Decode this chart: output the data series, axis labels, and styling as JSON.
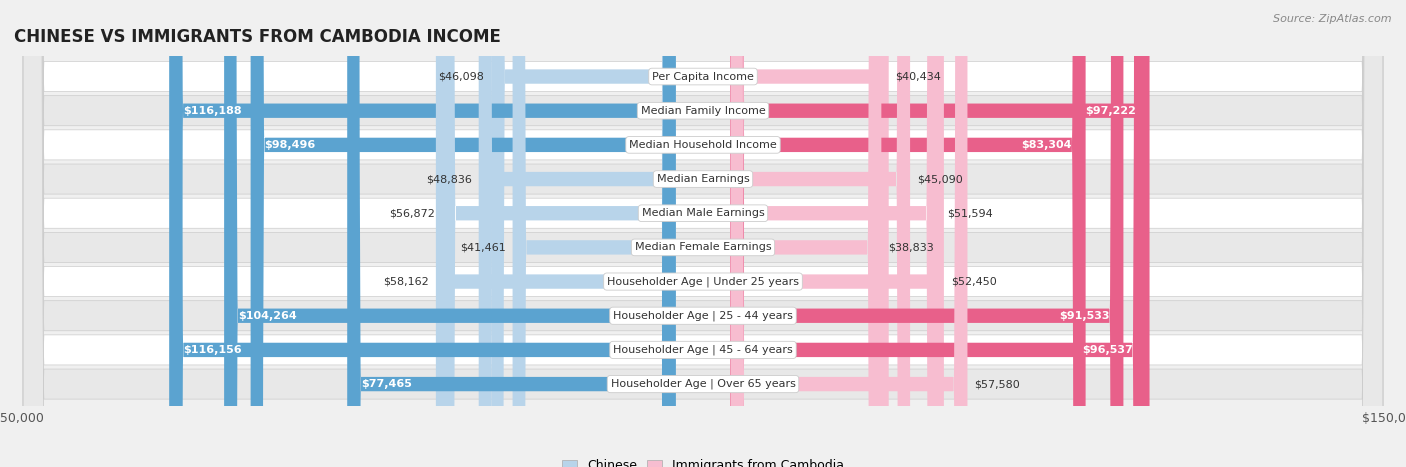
{
  "title": "CHINESE VS IMMIGRANTS FROM CAMBODIA INCOME",
  "source": "Source: ZipAtlas.com",
  "categories": [
    "Per Capita Income",
    "Median Family Income",
    "Median Household Income",
    "Median Earnings",
    "Median Male Earnings",
    "Median Female Earnings",
    "Householder Age | Under 25 years",
    "Householder Age | 25 - 44 years",
    "Householder Age | 45 - 64 years",
    "Householder Age | Over 65 years"
  ],
  "chinese_values": [
    46098,
    116188,
    98496,
    48836,
    56872,
    41461,
    58162,
    104264,
    116156,
    77465
  ],
  "cambodia_values": [
    40434,
    97222,
    83304,
    45090,
    51594,
    38833,
    52450,
    91533,
    96537,
    57580
  ],
  "chinese_labels": [
    "$46,098",
    "$116,188",
    "$98,496",
    "$48,836",
    "$56,872",
    "$41,461",
    "$58,162",
    "$104,264",
    "$116,156",
    "$77,465"
  ],
  "cambodia_labels": [
    "$40,434",
    "$97,222",
    "$83,304",
    "$45,090",
    "$51,594",
    "$38,833",
    "$52,450",
    "$91,533",
    "$96,537",
    "$57,580"
  ],
  "chinese_color_light": "#b8d4ea",
  "chinese_color_dark": "#5ba3d0",
  "cambodia_color_light": "#f7bdd0",
  "cambodia_color_dark": "#e8608a",
  "threshold": 65000,
  "max_value": 150000,
  "bg_color": "#f0f0f0",
  "row_bg_even": "#ffffff",
  "row_bg_odd": "#e8e8e8",
  "title_fontsize": 12,
  "label_fontsize": 8,
  "value_fontsize": 8,
  "legend_fontsize": 9
}
